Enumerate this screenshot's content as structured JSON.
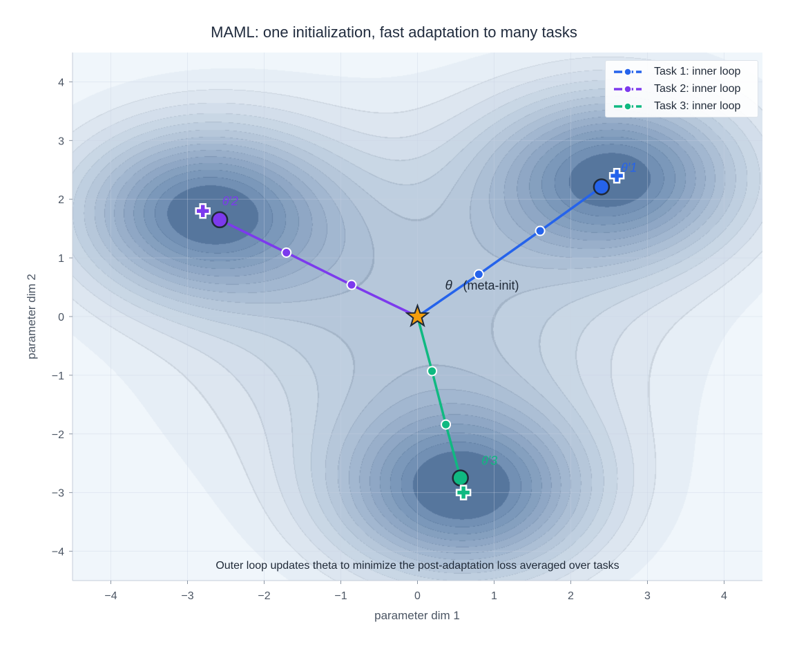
{
  "chart_data": {
    "type": "line",
    "title": "MAML: one initialization, fast adaptation to many tasks",
    "xlabel": "parameter dim 1",
    "ylabel": "parameter dim 2",
    "xlim": [
      -4.5,
      4.5
    ],
    "ylim": [
      -4.5,
      4.5
    ],
    "xticks": [
      -4,
      -3,
      -2,
      -1,
      0,
      1,
      2,
      3,
      4
    ],
    "yticks": [
      -4,
      -3,
      -2,
      -1,
      0,
      1,
      2,
      3,
      4
    ],
    "xtick_labels": [
      "−4",
      "−3",
      "−2",
      "−1",
      "0",
      "1",
      "2",
      "3",
      "4"
    ],
    "ytick_labels": [
      "−4",
      "−3",
      "−2",
      "−1",
      "0",
      "1",
      "2",
      "3",
      "4"
    ],
    "grid": true,
    "legend_position": "top-right",
    "meta_init": {
      "x": 0,
      "y": 0,
      "label_symbol": "θ",
      "label_text": "(meta-init)",
      "color": "#f59e0b"
    },
    "series": [
      {
        "name": "Task 1: inner loop",
        "color": "#2563eb",
        "x": [
          0,
          0.8,
          1.6,
          2.4
        ],
        "y": [
          0,
          0.72,
          1.46,
          2.21
        ],
        "optimum": {
          "x": 2.6,
          "y": 2.4,
          "label": "θ′1"
        }
      },
      {
        "name": "Task 2: inner loop",
        "color": "#7c3aed",
        "x": [
          0,
          -0.86,
          -1.71,
          -2.58
        ],
        "y": [
          0,
          0.54,
          1.09,
          1.65
        ],
        "optimum": {
          "x": -2.8,
          "y": 1.8,
          "label": "θ′2"
        }
      },
      {
        "name": "Task 3: inner loop",
        "color": "#10b981",
        "x": [
          0,
          0.19,
          0.37,
          0.56
        ],
        "y": [
          0,
          -0.93,
          -1.84,
          -2.75
        ],
        "optimum": {
          "x": 0.6,
          "y": -3.0,
          "label": "θ′3"
        }
      }
    ],
    "annotation": "Outer loop updates  theta  to minimize the post-adaptation loss averaged over tasks",
    "background": "filled contour of loss (Blues), minima at task optima"
  }
}
